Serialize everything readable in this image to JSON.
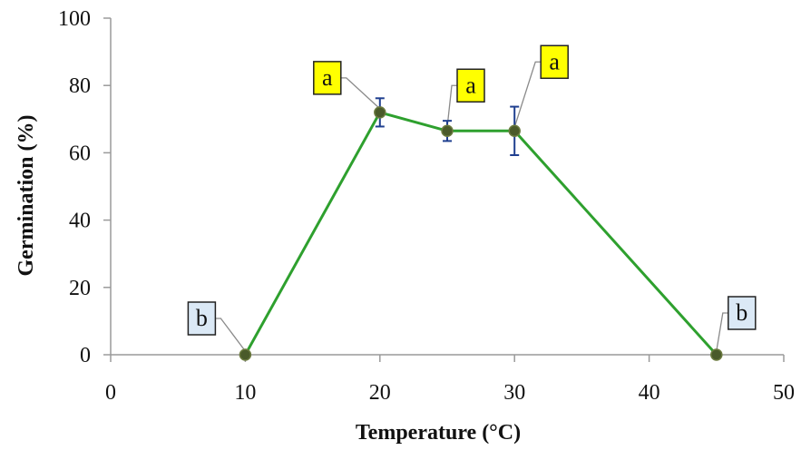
{
  "chart_data": {
    "type": "line",
    "title": "",
    "xlabel": "Temperature (°C)",
    "ylabel": "Germination (%)",
    "xlim": [
      0,
      50
    ],
    "ylim": [
      0,
      100
    ],
    "x_ticks": [
      "0",
      "10",
      "20",
      "30",
      "40",
      "50"
    ],
    "y_ticks": [
      "0",
      "20",
      "40",
      "60",
      "80",
      "100"
    ],
    "grid": false,
    "line_color": "#2ea02e",
    "marker_color": "#4a5a2a",
    "error_bar_color": "#1f3f8f",
    "series": [
      {
        "x": [
          10,
          20,
          25,
          30,
          45
        ],
        "y": [
          0,
          72,
          66.5,
          66.5,
          0
        ],
        "error": [
          0,
          4.2,
          3,
          7.2,
          0
        ]
      }
    ],
    "annotations": [
      {
        "label": "b",
        "x": 10,
        "y": 0,
        "fill": "#dbe9f6"
      },
      {
        "label": "a",
        "x": 20,
        "y": 72,
        "fill": "#ffff00"
      },
      {
        "label": "a",
        "x": 25,
        "y": 66.5,
        "fill": "#ffff00"
      },
      {
        "label": "a",
        "x": 30,
        "y": 66.5,
        "fill": "#ffff00"
      },
      {
        "label": "b",
        "x": 45,
        "y": 0,
        "fill": "#dbe9f6"
      }
    ]
  }
}
